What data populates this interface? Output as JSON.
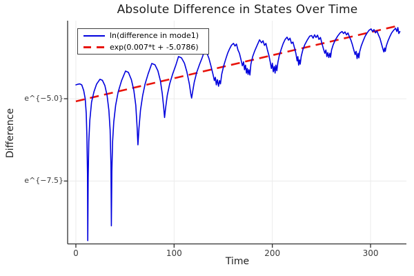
{
  "title": "Absolute Difference in States Over Time",
  "colors": {
    "background": "#ffffff",
    "blue_series": "#0000dd",
    "red_fit": "#e8140c",
    "grid": "#ebebeb",
    "spine": "#2f2f2f",
    "tick_text": "#3a3a3a"
  },
  "chart_data": {
    "type": "line",
    "title": "Absolute Difference in States Over Time",
    "xlabel": "Time",
    "ylabel": "Difference",
    "yscale": "log (natural), tick labels shown as e^{x}",
    "xlim": [
      -8.4,
      336.5
    ],
    "ylim": [
      -9.41,
      -2.63
    ],
    "grid": true,
    "legend_position": "top-left",
    "xticks": [
      {
        "value": 0,
        "label": "0"
      },
      {
        "value": 100,
        "label": "100"
      },
      {
        "value": 200,
        "label": "200"
      },
      {
        "value": 300,
        "label": "300"
      }
    ],
    "yticks": [
      {
        "value": -5.0,
        "label": "e^{−5.0}"
      },
      {
        "value": -7.5,
        "label": "e^{−7.5}"
      }
    ],
    "series": [
      {
        "name": "ln(difference in mode1)",
        "color": "#0000dd",
        "style": "solid",
        "width": 1.6,
        "points": [
          [
            0,
            -4.58
          ],
          [
            2,
            -4.56
          ],
          [
            4,
            -4.55
          ],
          [
            6,
            -4.58
          ],
          [
            8,
            -4.75
          ],
          [
            9.5,
            -5.0
          ],
          [
            10.6,
            -5.45
          ],
          [
            11.3,
            -6.2
          ],
          [
            11.8,
            -7.3
          ],
          [
            12.1,
            -9.31
          ],
          [
            12.5,
            -7.4
          ],
          [
            13.2,
            -6.3
          ],
          [
            14.2,
            -5.65
          ],
          [
            16,
            -5.1
          ],
          [
            18.5,
            -4.78
          ],
          [
            21,
            -4.56
          ],
          [
            24.5,
            -4.41
          ],
          [
            27,
            -4.44
          ],
          [
            29.5,
            -4.6
          ],
          [
            31.8,
            -4.9
          ],
          [
            33.6,
            -5.35
          ],
          [
            34.9,
            -5.95
          ],
          [
            35.7,
            -7.0
          ],
          [
            36.1,
            -8.86
          ],
          [
            36.6,
            -7.2
          ],
          [
            37.4,
            -6.3
          ],
          [
            38.6,
            -5.7
          ],
          [
            40.5,
            -5.2
          ],
          [
            43,
            -4.8
          ],
          [
            46.5,
            -4.45
          ],
          [
            50.5,
            -4.16
          ],
          [
            53.5,
            -4.2
          ],
          [
            56.5,
            -4.42
          ],
          [
            59,
            -4.75
          ],
          [
            61,
            -5.2
          ],
          [
            62.4,
            -5.9
          ],
          [
            63.2,
            -6.4
          ],
          [
            64.2,
            -5.9
          ],
          [
            65.8,
            -5.35
          ],
          [
            68,
            -4.9
          ],
          [
            70.5,
            -4.55
          ],
          [
            73.5,
            -4.25
          ],
          [
            77.3,
            -3.93
          ],
          [
            80.5,
            -3.97
          ],
          [
            83.5,
            -4.15
          ],
          [
            86,
            -4.45
          ],
          [
            88,
            -4.85
          ],
          [
            89.5,
            -5.3
          ],
          [
            90.3,
            -5.57
          ],
          [
            91.3,
            -5.3
          ],
          [
            93,
            -4.9
          ],
          [
            95.5,
            -4.55
          ],
          [
            98.5,
            -4.25
          ],
          [
            101.5,
            -4.0
          ],
          [
            104.5,
            -3.72
          ],
          [
            107.5,
            -3.76
          ],
          [
            110.5,
            -3.92
          ],
          [
            113,
            -4.18
          ],
          [
            115.5,
            -4.55
          ],
          [
            117,
            -4.85
          ],
          [
            117.8,
            -4.98
          ],
          [
            118.8,
            -4.8
          ],
          [
            120.5,
            -4.5
          ],
          [
            123,
            -4.2
          ],
          [
            126,
            -3.95
          ],
          [
            128.5,
            -3.76
          ],
          [
            131,
            -3.55
          ],
          [
            133.5,
            -3.62
          ],
          [
            135.5,
            -3.78
          ],
          [
            137.5,
            -4.0
          ],
          [
            139.5,
            -4.25
          ],
          [
            141,
            -4.45
          ],
          [
            142,
            -4.35
          ],
          [
            143,
            -4.58
          ],
          [
            144,
            -4.42
          ],
          [
            145.2,
            -4.62
          ],
          [
            146.2,
            -4.45
          ],
          [
            147.2,
            -4.55
          ],
          [
            148.5,
            -4.25
          ],
          [
            150.5,
            -4.0
          ],
          [
            152.5,
            -3.8
          ],
          [
            154.5,
            -3.62
          ],
          [
            156.5,
            -3.48
          ],
          [
            158.5,
            -3.37
          ],
          [
            160.5,
            -3.32
          ],
          [
            162,
            -3.4
          ],
          [
            163.5,
            -3.34
          ],
          [
            165,
            -3.52
          ],
          [
            166.5,
            -3.62
          ],
          [
            168,
            -3.8
          ],
          [
            169.5,
            -4.0
          ],
          [
            170.7,
            -3.88
          ],
          [
            171.7,
            -4.12
          ],
          [
            172.7,
            -3.98
          ],
          [
            173.7,
            -4.22
          ],
          [
            174.5,
            -4.08
          ],
          [
            175.3,
            -4.26
          ],
          [
            176.2,
            -4.12
          ],
          [
            177.2,
            -4.28
          ],
          [
            178.2,
            -3.95
          ],
          [
            180,
            -3.72
          ],
          [
            182,
            -3.55
          ],
          [
            184.5,
            -3.38
          ],
          [
            187,
            -3.21
          ],
          [
            189,
            -3.3
          ],
          [
            190.5,
            -3.24
          ],
          [
            192,
            -3.38
          ],
          [
            193.5,
            -3.32
          ],
          [
            195,
            -3.52
          ],
          [
            196.5,
            -3.68
          ],
          [
            198,
            -3.9
          ],
          [
            199,
            -4.08
          ],
          [
            200,
            -3.92
          ],
          [
            201,
            -4.18
          ],
          [
            202,
            -4.02
          ],
          [
            202.8,
            -4.22
          ],
          [
            203.6,
            -3.98
          ],
          [
            204.6,
            -4.15
          ],
          [
            205.6,
            -3.9
          ],
          [
            207,
            -3.7
          ],
          [
            209,
            -3.5
          ],
          [
            211,
            -3.33
          ],
          [
            213,
            -3.2
          ],
          [
            215,
            -3.13
          ],
          [
            216.5,
            -3.22
          ],
          [
            218,
            -3.16
          ],
          [
            219.5,
            -3.32
          ],
          [
            221,
            -3.28
          ],
          [
            222.5,
            -3.45
          ],
          [
            224,
            -3.62
          ],
          [
            225.2,
            -3.85
          ],
          [
            226,
            -3.72
          ],
          [
            226.8,
            -3.98
          ],
          [
            227.6,
            -3.82
          ],
          [
            228.4,
            -3.95
          ],
          [
            229.4,
            -3.72
          ],
          [
            231,
            -3.52
          ],
          [
            233,
            -3.36
          ],
          [
            235.5,
            -3.22
          ],
          [
            238,
            -3.1
          ],
          [
            240,
            -3.08
          ],
          [
            241.5,
            -3.16
          ],
          [
            243,
            -3.06
          ],
          [
            244.5,
            -3.14
          ],
          [
            246,
            -3.07
          ],
          [
            247.5,
            -3.2
          ],
          [
            249,
            -3.14
          ],
          [
            250.5,
            -3.32
          ],
          [
            252,
            -3.48
          ],
          [
            253.5,
            -3.62
          ],
          [
            254.5,
            -3.52
          ],
          [
            255.5,
            -3.72
          ],
          [
            256.5,
            -3.6
          ],
          [
            257.5,
            -3.75
          ],
          [
            258.5,
            -3.62
          ],
          [
            259.3,
            -3.74
          ],
          [
            260.3,
            -3.52
          ],
          [
            262,
            -3.36
          ],
          [
            264,
            -3.22
          ],
          [
            266.5,
            -3.1
          ],
          [
            269,
            -3.0
          ],
          [
            271,
            -2.96
          ],
          [
            272.5,
            -3.02
          ],
          [
            274,
            -2.97
          ],
          [
            275.5,
            -3.06
          ],
          [
            277,
            -3.0
          ],
          [
            278.5,
            -3.12
          ],
          [
            280,
            -3.22
          ],
          [
            281.5,
            -3.36
          ],
          [
            283,
            -3.52
          ],
          [
            284.3,
            -3.66
          ],
          [
            285.3,
            -3.56
          ],
          [
            286.3,
            -3.78
          ],
          [
            287.3,
            -3.62
          ],
          [
            288.1,
            -3.76
          ],
          [
            289,
            -3.56
          ],
          [
            290.5,
            -3.4
          ],
          [
            292.5,
            -3.24
          ],
          [
            294.5,
            -3.1
          ],
          [
            296.5,
            -3.0
          ],
          [
            298.5,
            -2.92
          ],
          [
            300.5,
            -2.88
          ],
          [
            302,
            -2.96
          ],
          [
            303.5,
            -2.9
          ],
          [
            305,
            -3.0
          ],
          [
            306.5,
            -2.94
          ],
          [
            308,
            -3.06
          ],
          [
            309.5,
            -3.16
          ],
          [
            311,
            -3.32
          ],
          [
            312.5,
            -3.48
          ],
          [
            313.5,
            -3.58
          ],
          [
            314.3,
            -3.46
          ],
          [
            315,
            -3.56
          ],
          [
            316,
            -3.4
          ],
          [
            317.5,
            -3.26
          ],
          [
            319.5,
            -3.12
          ],
          [
            321.5,
            -3.0
          ],
          [
            323.5,
            -2.92
          ],
          [
            325.5,
            -2.86
          ],
          [
            326.8,
            -2.96
          ],
          [
            327.8,
            -2.84
          ],
          [
            328.8,
            -3.02
          ],
          [
            329.8,
            -2.96
          ]
        ]
      },
      {
        "name": "exp(0.007*t + -5.0786)",
        "color": "#e8140c",
        "style": "dashed",
        "width": 2.6,
        "fit": {
          "slope": 0.007,
          "intercept": -5.0786
        },
        "t_range": [
          0,
          330
        ]
      }
    ]
  }
}
